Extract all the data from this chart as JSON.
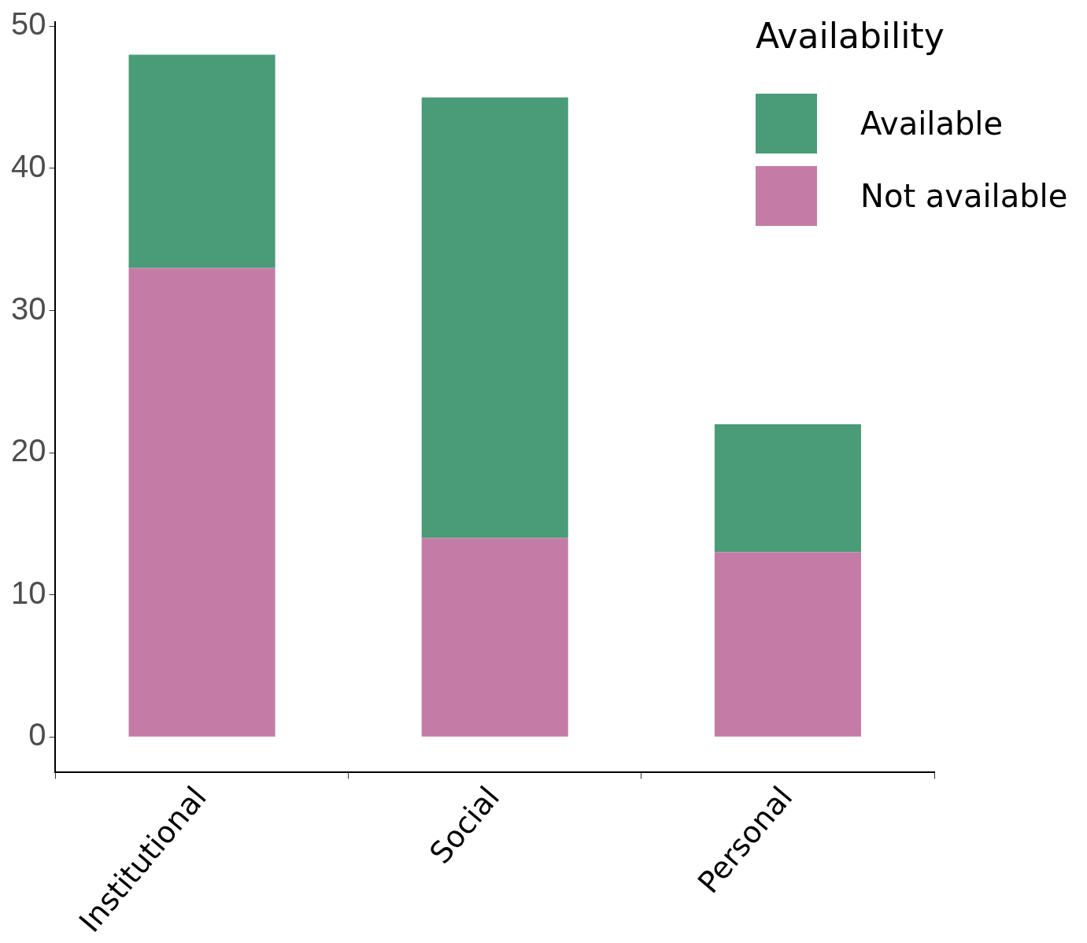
{
  "chart_data": {
    "type": "bar",
    "stacked": true,
    "categories": [
      "Institutional",
      "Social",
      "Personal"
    ],
    "series": [
      {
        "name": "Not available",
        "color": "#c47ca6",
        "values": [
          33,
          14,
          13
        ]
      },
      {
        "name": "Available",
        "color": "#4a9b78",
        "values": [
          15,
          31,
          9
        ]
      }
    ],
    "ylim": [
      -2.5,
      50.3
    ],
    "yticks": [
      0,
      10,
      20,
      30,
      40,
      50
    ],
    "grid": false,
    "legend": "top right",
    "legend_title": "Availability"
  }
}
